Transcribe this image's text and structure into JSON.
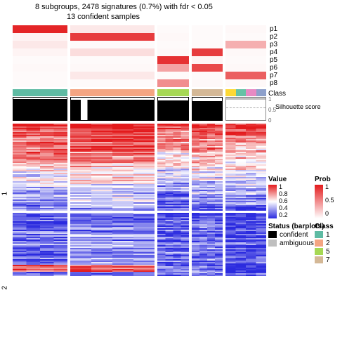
{
  "title": "8 subgroups, 2478 signatures (0.7%) with fdr < 0.05",
  "subtitle": "13 confident samples",
  "columns": [
    {
      "w": "c1",
      "class_color": "#5fbba3",
      "sil_conf": true,
      "sil_h": 0.95,
      "p": [
        0.95,
        0.05,
        0.1,
        0.05,
        0.02,
        0.03,
        0.02,
        0.02
      ]
    },
    {
      "w": "c2",
      "class_color": "#f4a582",
      "sil_conf": true,
      "sil_h": 0.92,
      "sil_notch": true,
      "p": [
        0.1,
        0.85,
        0.02,
        0.15,
        0.02,
        0.03,
        0.1,
        0.02
      ]
    },
    {
      "w": "c3",
      "class_color": "#a6d854",
      "sil_conf": true,
      "sil_h": 0.88,
      "p": [
        0.02,
        0.03,
        0.02,
        0.03,
        0.9,
        0.4,
        0.02,
        0.5
      ]
    },
    {
      "w": "c4",
      "class_color": "#d4b896",
      "sil_conf": true,
      "sil_h": 0.85,
      "p": [
        0.02,
        0.02,
        0.02,
        0.85,
        0.05,
        0.8,
        0.02,
        0.03
      ]
    },
    {
      "w": "c5",
      "class_color": "mix",
      "sil_conf": false,
      "sil_h": 0.5,
      "p": [
        0.03,
        0.02,
        0.35,
        0.03,
        0.02,
        0.03,
        0.7,
        0.03
      ]
    }
  ],
  "mix_colors": [
    "#fdd835",
    "#66c2a5",
    "#e78ac3",
    "#8da0cb"
  ],
  "p_labels": [
    "p1",
    "p2",
    "p3",
    "p4",
    "p5",
    "p6",
    "p7",
    "p8"
  ],
  "class_label": "Class",
  "sil_label": "Silhouette score",
  "sil_ticks": [
    "1",
    "0.5",
    "0"
  ],
  "y_sections": [
    "1",
    "2"
  ],
  "heatmap": {
    "rows_section1": 62,
    "rows_section2": 45,
    "section_gap": 3
  },
  "value_legend": {
    "title": "Value",
    "stops": [
      "#e31a1c",
      "#ffffff",
      "#2b2bdf"
    ],
    "ticks": [
      "1",
      "0.8",
      "0.6",
      "0.4",
      "0.2"
    ]
  },
  "prob_legend": {
    "title": "Prob",
    "stops": [
      "#e31a1c",
      "#ffffff"
    ],
    "ticks": [
      "1",
      "0.5",
      "0"
    ]
  },
  "status_legend": {
    "title": "Status (barplots)",
    "items": [
      {
        "label": "confident",
        "color": "#000000"
      },
      {
        "label": "ambiguous",
        "color": "#bfbfbf"
      }
    ]
  },
  "class_legend": {
    "title": "Class",
    "items": [
      {
        "label": "1",
        "color": "#5fbba3"
      },
      {
        "label": "2",
        "color": "#f4a582"
      },
      {
        "label": "5",
        "color": "#a6d854"
      },
      {
        "label": "7",
        "color": "#d4b896"
      }
    ]
  }
}
